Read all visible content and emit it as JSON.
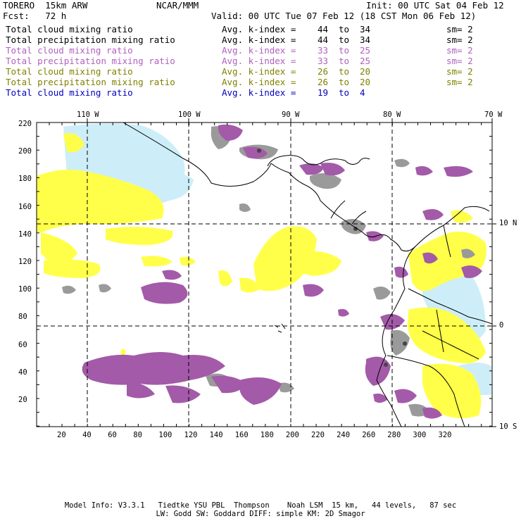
{
  "header": {
    "model": "TORERO  15km ARW",
    "center": "NCAR/MMM",
    "init": "Init: 00 UTC Sat 04 Feb 12",
    "fcst": "Fcst:   72 h",
    "valid": "Valid: 00 UTC Tue 07 Feb 12 (18 CST Mon 06 Feb 12)"
  },
  "legend": [
    {
      "field": "Total cloud mixing ratio",
      "stat": "Avg. k-index =",
      "from": "44",
      "to_word": "to",
      "to": "34",
      "sm": "sm= 2",
      "color": "#000000"
    },
    {
      "field": "Total precipitation mixing ratio",
      "stat": "Avg. k-index =",
      "from": "44",
      "to_word": "to",
      "to": "34",
      "sm": "sm= 2",
      "color": "#000000"
    },
    {
      "field": "Total cloud mixing ratio",
      "stat": "Avg. k-index =",
      "from": "33",
      "to_word": "to",
      "to": "25",
      "sm": "sm= 2",
      "color": "#b060c0"
    },
    {
      "field": "Total precipitation mixing ratio",
      "stat": "Avg. k-index =",
      "from": "33",
      "to_word": "to",
      "to": "25",
      "sm": "sm= 2",
      "color": "#b060c0"
    },
    {
      "field": "Total cloud mixing ratio",
      "stat": "Avg. k-index =",
      "from": "26",
      "to_word": "to",
      "to": "20",
      "sm": "sm= 2",
      "color": "#808000"
    },
    {
      "field": "Total precipitation mixing ratio",
      "stat": "Avg. k-index =",
      "from": "26",
      "to_word": "to",
      "to": "20",
      "sm": "sm= 2",
      "color": "#808000"
    },
    {
      "field": "Total cloud mixing ratio",
      "stat": "Avg. k-index =",
      "from": "19",
      "to_word": "to",
      "to": "4",
      "sm": "",
      "color": "#0000c0"
    }
  ],
  "map": {
    "top_ticks": [
      "110 W",
      "100 W",
      "90 W",
      "80 W",
      "70 W"
    ],
    "right_ticks": [
      "10 N",
      "0",
      "10 S"
    ],
    "y_grid_labels": [
      "220",
      "200",
      "180",
      "160",
      "140",
      "120",
      "100",
      "80",
      "60",
      "40",
      "20"
    ],
    "x_grid_labels": [
      "20",
      "40",
      "60",
      "80",
      "100",
      "120",
      "140",
      "160",
      "180",
      "200",
      "220",
      "240",
      "260",
      "280",
      "300",
      "320"
    ],
    "colors": {
      "gray": "#9a9a9a",
      "purple": "#a35aa8",
      "yellow": "#ffff4a",
      "lightblue": "#cdeef8",
      "dark": "#444444"
    }
  },
  "footer": {
    "line1": "Model Info: V3.3.1   Tiedtke YSU PBL  Thompson    Noah LSM  15 km,   44 levels,   87 sec",
    "line2": "LW: Godd SW: Goddard DIFF: simple KM: 2D Smagor"
  }
}
